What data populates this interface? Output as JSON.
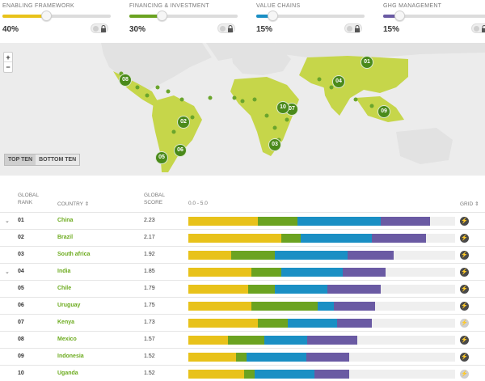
{
  "sliders": [
    {
      "label": "Enabling Framework",
      "value": "40%",
      "fraction": 0.4,
      "color": "#e8c21a"
    },
    {
      "label": "Financing & Investment",
      "value": "30%",
      "fraction": 0.3,
      "color": "#6ba321"
    },
    {
      "label": "Value Chains",
      "value": "15%",
      "fraction": 0.15,
      "color": "#1a8fc4"
    },
    {
      "label": "GHG Management",
      "value": "15%",
      "fraction": 0.15,
      "color": "#6a5aa3"
    }
  ],
  "map": {
    "zoom_in": "+",
    "zoom_out": "−",
    "toggle": {
      "top": "TOP TEN",
      "bottom": "BOTTOM TEN"
    },
    "markers": [
      "01",
      "02",
      "03",
      "04",
      "05",
      "06",
      "07",
      "08",
      "09",
      "10"
    ]
  },
  "table": {
    "headers": {
      "rank": "Global Rank",
      "country": "Country",
      "score": "Global Score",
      "range": "0.0 - 5.0",
      "grid": "Grid"
    },
    "rows": [
      {
        "rank": "01",
        "country": "China",
        "score": "2.23",
        "expanded": true,
        "grid": true,
        "parts": [
          1.31,
          0.74,
          1.55,
          0.93
        ]
      },
      {
        "rank": "02",
        "country": "Brazil",
        "score": "2.17",
        "expanded": false,
        "grid": true,
        "parts": [
          1.74,
          0.37,
          1.33,
          1.02
        ]
      },
      {
        "rank": "03",
        "country": "South africa",
        "score": "1.92",
        "expanded": false,
        "grid": true,
        "parts": [
          0.81,
          0.81,
          1.36,
          0.87
        ]
      },
      {
        "rank": "04",
        "country": "India",
        "score": "1.85",
        "expanded": true,
        "grid": true,
        "parts": [
          1.18,
          0.56,
          1.15,
          0.81
        ]
      },
      {
        "rank": "05",
        "country": "Chile",
        "score": "1.79",
        "expanded": false,
        "grid": true,
        "parts": [
          1.12,
          0.5,
          0.99,
          0.99
        ]
      },
      {
        "rank": "06",
        "country": "Uruguay",
        "score": "1.75",
        "expanded": false,
        "grid": true,
        "parts": [
          1.18,
          1.24,
          0.31,
          0.77
        ]
      },
      {
        "rank": "07",
        "country": "Kenya",
        "score": "1.73",
        "expanded": false,
        "grid": false,
        "parts": [
          1.3,
          0.56,
          0.93,
          0.65
        ]
      },
      {
        "rank": "08",
        "country": "Mexico",
        "score": "1.57",
        "expanded": false,
        "grid": true,
        "parts": [
          0.74,
          0.68,
          0.81,
          0.93
        ]
      },
      {
        "rank": "09",
        "country": "Indonesia",
        "score": "1.52",
        "expanded": false,
        "grid": true,
        "parts": [
          0.9,
          0.19,
          1.12,
          0.81
        ]
      },
      {
        "rank": "10",
        "country": "Uganda",
        "score": "1.52",
        "expanded": false,
        "grid": false,
        "parts": [
          1.05,
          0.19,
          1.12,
          0.65
        ]
      }
    ]
  }
}
